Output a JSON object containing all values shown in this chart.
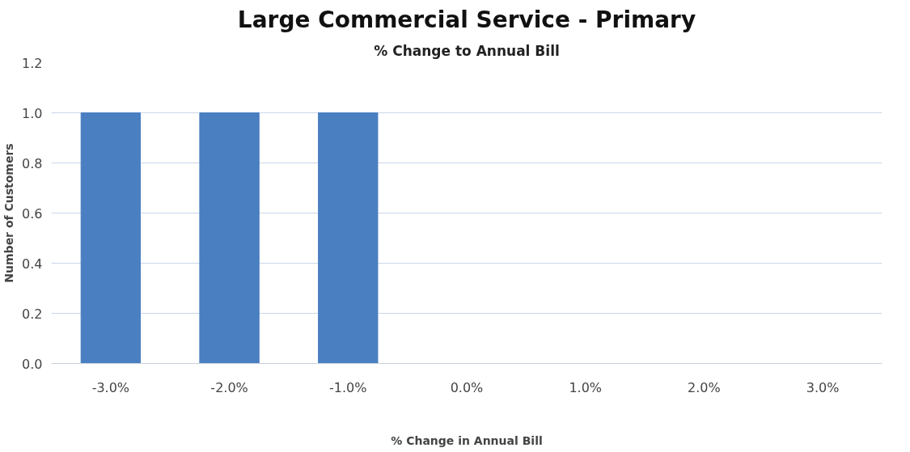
{
  "chart_data": {
    "type": "bar",
    "title": "Large Commercial Service - Primary",
    "subtitle": "% Change to Annual Bill",
    "xlabel": "% Change in Annual Bill",
    "ylabel": "Number of Customers",
    "categories": [
      "-3.0%",
      "-2.0%",
      "-1.0%",
      "0.0%",
      "1.0%",
      "2.0%",
      "3.0%"
    ],
    "series": [
      {
        "color": "#4a7fc1",
        "values": [
          1,
          1,
          1,
          0,
          0,
          0,
          0
        ]
      }
    ],
    "ylim": [
      0,
      1.2
    ],
    "yticks": [
      {
        "value": 0,
        "label": "0.0"
      },
      {
        "value": 0.2,
        "label": "0.2"
      },
      {
        "value": 0.4,
        "label": "0.4"
      },
      {
        "value": 0.6,
        "label": "0.6"
      },
      {
        "value": 0.8,
        "label": "0.8"
      },
      {
        "value": 1,
        "label": "1.0"
      },
      {
        "value": 1.2,
        "label": "1.2"
      }
    ],
    "grid": "y"
  }
}
